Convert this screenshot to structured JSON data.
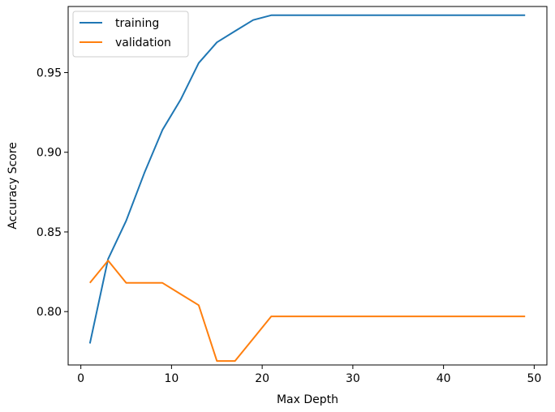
{
  "chart_data": {
    "type": "line",
    "title": "",
    "xlabel": "Max Depth",
    "ylabel": "Accuracy Score",
    "xlim": [
      -1.4,
      51.4
    ],
    "ylim": [
      0.7665,
      0.9915
    ],
    "xticks": [
      0,
      10,
      20,
      30,
      40,
      50
    ],
    "xtick_labels": [
      "0",
      "10",
      "20",
      "30",
      "40",
      "50"
    ],
    "yticks": [
      0.8,
      0.85,
      0.9,
      0.95
    ],
    "ytick_labels": [
      "0.80",
      "0.85",
      "0.90",
      "0.95"
    ],
    "grid": false,
    "legend_position": "top-left",
    "x": [
      1,
      3,
      5,
      7,
      9,
      11,
      13,
      15,
      17,
      19,
      21,
      23,
      25,
      27,
      29,
      31,
      33,
      35,
      37,
      39,
      41,
      43,
      45,
      47,
      49
    ],
    "series": [
      {
        "name": "training",
        "color": "#1f77b4",
        "values": [
          0.78,
          0.833,
          0.857,
          0.887,
          0.914,
          0.933,
          0.956,
          0.969,
          0.976,
          0.983,
          0.986,
          0.986,
          0.986,
          0.986,
          0.986,
          0.986,
          0.986,
          0.986,
          0.986,
          0.986,
          0.986,
          0.986,
          0.986,
          0.986,
          0.986
        ]
      },
      {
        "name": "validation",
        "color": "#ff7f0e",
        "values": [
          0.818,
          0.832,
          0.818,
          0.818,
          0.818,
          0.811,
          0.804,
          0.769,
          0.769,
          0.783,
          0.797,
          0.797,
          0.797,
          0.797,
          0.797,
          0.797,
          0.797,
          0.797,
          0.797,
          0.797,
          0.797,
          0.797,
          0.797,
          0.797,
          0.797
        ]
      }
    ]
  }
}
